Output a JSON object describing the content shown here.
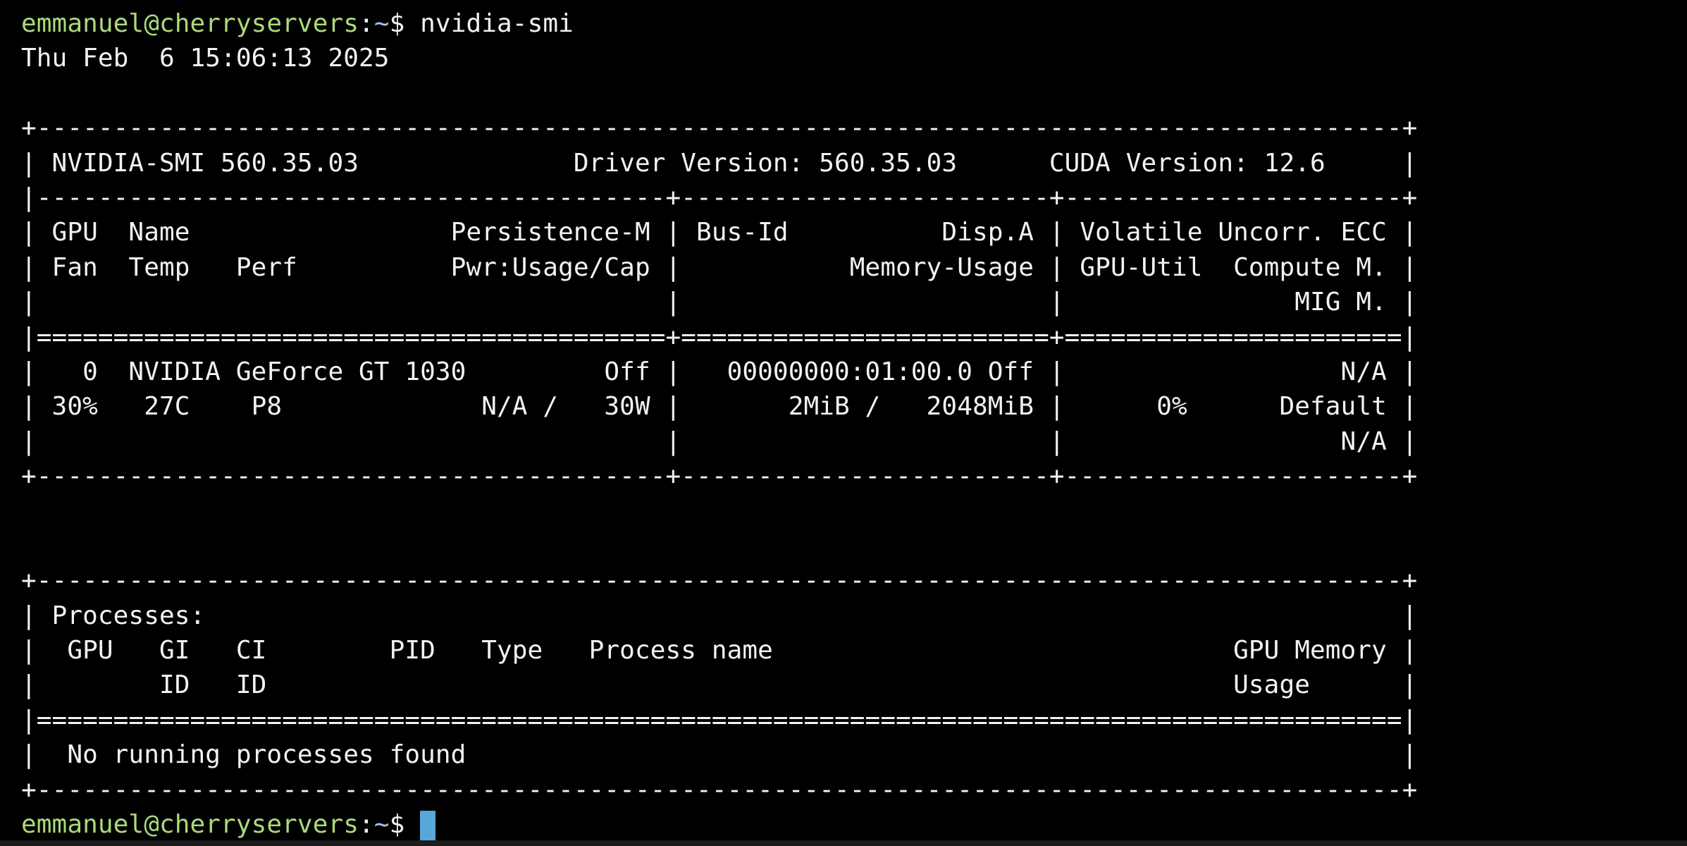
{
  "colors": {
    "background": "#000000",
    "foreground": "#f2f2f2",
    "prompt_green": "#abda7a",
    "path_blue": "#a6c6ea",
    "cursor_blue": "#55a8d8",
    "edge_gray": "#1c1c1c"
  },
  "terminal": {
    "prompt": {
      "user_host": "emmanuel@cherryservers",
      "colon": ":",
      "path": "~",
      "dollar": "$ "
    },
    "command": "nvidia-smi",
    "datetime": "Thu Feb  6 15:06:13 2025",
    "gpu": {
      "smi_version": "560.35.03",
      "driver_version": "560.35.03",
      "cuda_version": "12.6",
      "index": "0",
      "name": "NVIDIA GeForce GT 1030",
      "persistence_mode": "Off",
      "bus_id": "00000000:01:00.0",
      "display_active": "Off",
      "volatile_uncorr_ecc": "N/A",
      "fan": "30%",
      "temp": "27C",
      "perf": "P8",
      "power_usage_cap": "N/A / 30W",
      "memory_usage": "2MiB / 2048MiB",
      "gpu_util": "0%",
      "compute_mode": "Default",
      "mig_mode": "N/A",
      "processes_status": "No running processes found"
    },
    "lines": [
      "Thu Feb  6 15:06:13 2025",
      "",
      "+-----------------------------------------------------------------------------------------+",
      "| NVIDIA-SMI 560.35.03              Driver Version: 560.35.03      CUDA Version: 12.6     |",
      "|-----------------------------------------+------------------------+----------------------+",
      "| GPU  Name                 Persistence-M | Bus-Id          Disp.A | Volatile Uncorr. ECC |",
      "| Fan  Temp   Perf          Pwr:Usage/Cap |           Memory-Usage | GPU-Util  Compute M. |",
      "|                                         |                        |               MIG M. |",
      "|=========================================+========================+======================|",
      "|   0  NVIDIA GeForce GT 1030         Off |   00000000:01:00.0 Off |                  N/A |",
      "| 30%   27C    P8             N/A /   30W |       2MiB /   2048MiB |      0%      Default |",
      "|                                         |                        |                  N/A |",
      "+-----------------------------------------+------------------------+----------------------+",
      "",
      "",
      "+-----------------------------------------------------------------------------------------+",
      "| Processes:                                                                              |",
      "|  GPU   GI   CI        PID   Type   Process name                              GPU Memory |",
      "|        ID   ID                                                               Usage      |",
      "|=========================================================================================|",
      "|  No running processes found                                                             |",
      "+-----------------------------------------------------------------------------------------+"
    ]
  }
}
